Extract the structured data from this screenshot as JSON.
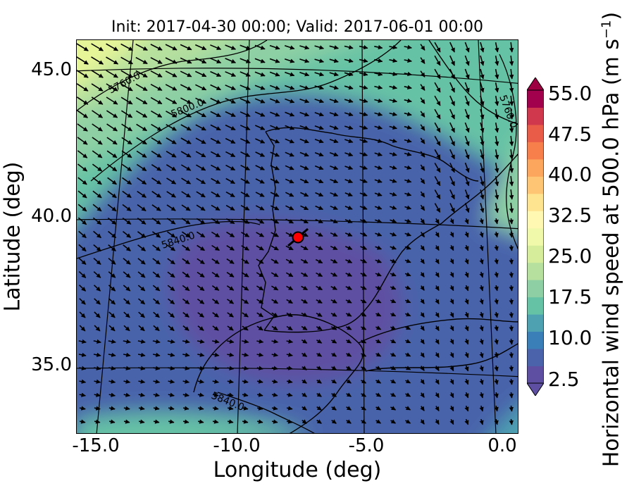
{
  "title": "Init: 2017-04-30 00:00; Valid: 2017-06-01 00:00",
  "axes": {
    "xlabel": "Longitude (deg)",
    "ylabel": "Latitude (deg)",
    "xticks": [
      "-15.0",
      "-10.0",
      "-5.0",
      "0.0"
    ],
    "yticks": [
      "45.0",
      "40.0",
      "35.0"
    ]
  },
  "colorbar": {
    "label_main": "Horizontal wind speed at 500.0 hPa (m s",
    "label_exp": "−1",
    "label_close": ")",
    "ticks": [
      "55.0",
      "47.5",
      "40.0",
      "32.5",
      "25.0",
      "17.5",
      "10.0",
      "2.5"
    ],
    "colors": [
      "#5e4fa2",
      "#4a63ab",
      "#3b7fb9",
      "#4da1b1",
      "#66c2a5",
      "#8ed0a4",
      "#b5e09e",
      "#d6ee9b",
      "#f0f8a9",
      "#fef8b3",
      "#fee491",
      "#fdc574",
      "#fca55d",
      "#f67f4b",
      "#e95c47",
      "#d0384e",
      "#a1014d"
    ],
    "under_color": "#5e4fa2",
    "over_color": "#9e0142"
  },
  "contours": {
    "labels": [
      "5760.0",
      "5800.0",
      "5840.0",
      "5840.0",
      "5760.0"
    ]
  },
  "marker": {
    "color": "#ff0000"
  }
}
